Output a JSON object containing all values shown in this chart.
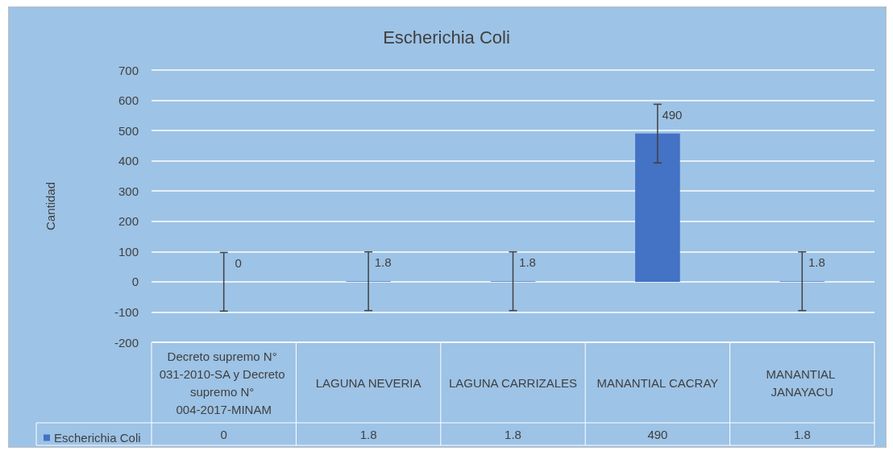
{
  "chart_data": {
    "type": "bar",
    "title": "Escherichia Coli",
    "ylabel": "Cantidad",
    "categories": [
      "Decreto supremo N° 031-2010-SA y Decreto supremo N° 004-2017-MINAM",
      "LAGUNA NEVERIA",
      "LAGUNA CARRIZALES",
      "MANANTIAL CACRAY",
      "MANANTIAL JANAYACU"
    ],
    "series": [
      {
        "name": "Escherichia Coli",
        "color": "#4472c4",
        "values": [
          0,
          1.8,
          1.8,
          490,
          1.8
        ],
        "value_labels": [
          "0",
          "1.8",
          "1.8",
          "490",
          "1.8"
        ],
        "errors": [
          97,
          97,
          97,
          97,
          97
        ]
      }
    ],
    "ylim": [
      -200,
      700
    ],
    "yticks": [
      -200,
      -100,
      0,
      100,
      200,
      300,
      400,
      500,
      600,
      700
    ],
    "grid": "y",
    "legend": "bottom left",
    "data_labels": true
  }
}
